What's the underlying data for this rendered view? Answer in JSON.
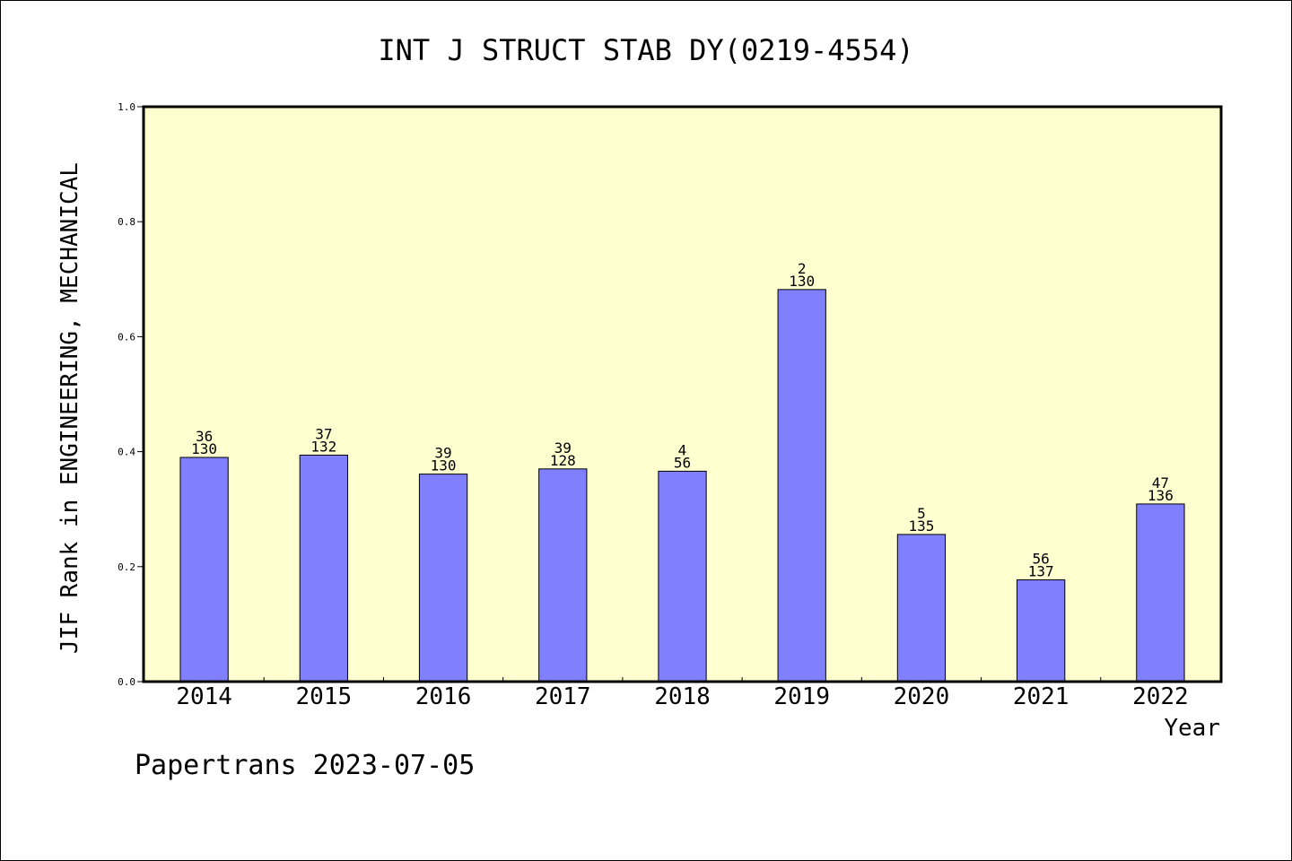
{
  "chart_data": {
    "type": "bar",
    "title": "INT J STRUCT STAB DY(0219-4554)",
    "xlabel": "Year",
    "ylabel": "JIF Rank in ENGINEERING, MECHANICAL",
    "ylim": [
      0,
      1.0
    ],
    "yticks": [
      "0.0",
      "0.2",
      "0.4",
      "0.6",
      "0.8",
      "1.0"
    ],
    "categories": [
      "2014",
      "2015",
      "2016",
      "2017",
      "2018",
      "2019",
      "2020",
      "2021",
      "2022"
    ],
    "values": [
      0.39,
      0.394,
      0.361,
      0.37,
      0.366,
      0.682,
      0.256,
      0.177,
      0.309
    ],
    "rank": [
      "36",
      "37",
      "39",
      "39",
      "4",
      "2",
      "5",
      "56",
      "47"
    ],
    "total": [
      "130",
      "132",
      "130",
      "128",
      "56",
      "130",
      "135",
      "137",
      "136"
    ],
    "bar_color": "#8080ff",
    "background_color": "#ffffd0",
    "grid": false
  },
  "footer": {
    "credit": "Papertrans 2023-07-05"
  }
}
